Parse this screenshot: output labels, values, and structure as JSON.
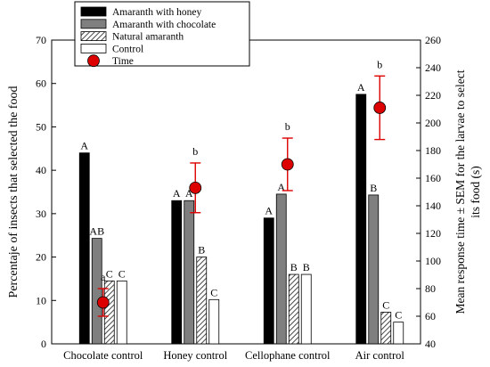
{
  "chart_data": {
    "type": "bar",
    "categories": [
      "Chocolate control",
      "Honey control",
      "Cellophane control",
      "Air control"
    ],
    "series": [
      {
        "name": "Amaranth with honey",
        "color": "#000000",
        "pattern": "solid",
        "values": [
          44,
          33,
          29,
          57.5
        ],
        "letters": [
          "A",
          "A",
          "A",
          "A"
        ]
      },
      {
        "name": "Amaranth with chocolate",
        "color": "#7f7f7f",
        "pattern": "solid",
        "values": [
          24.3,
          33,
          34.5,
          34.3
        ],
        "letters": [
          "AB",
          "A",
          "A",
          "B"
        ]
      },
      {
        "name": "Natural amaranth",
        "color": "#ffffff",
        "pattern": "hatch",
        "values": [
          14.5,
          20,
          16,
          7.3
        ],
        "letters": [
          "C",
          "B",
          "B",
          "C"
        ]
      },
      {
        "name": "Control",
        "color": "#ffffff",
        "pattern": "solid",
        "values": [
          14.5,
          10.2,
          16,
          5
        ],
        "letters": [
          "C",
          "C",
          "B",
          "C"
        ]
      }
    ],
    "time_series": {
      "name": "Time",
      "color": "#dd0000",
      "means": [
        70,
        153,
        170,
        211
      ],
      "errors": [
        10,
        18,
        19,
        23
      ],
      "letters": [
        "a",
        "b",
        "b",
        "b"
      ]
    },
    "ylabel": "Percentaje of insects that selected the food",
    "y2label_lines": [
      "Mean response time ± SEM for  the larvae to select",
      "its food (s)"
    ],
    "ylim": [
      0,
      70
    ],
    "y2lim": [
      40,
      260
    ],
    "yticks": [
      "0",
      "10",
      "20",
      "30",
      "40",
      "50",
      "60",
      "70"
    ],
    "y2ticks": [
      "40",
      "60",
      "80",
      "100",
      "120",
      "140",
      "160",
      "180",
      "200",
      "220",
      "240",
      "260"
    ],
    "grid": false,
    "legend_position": "top-left"
  }
}
